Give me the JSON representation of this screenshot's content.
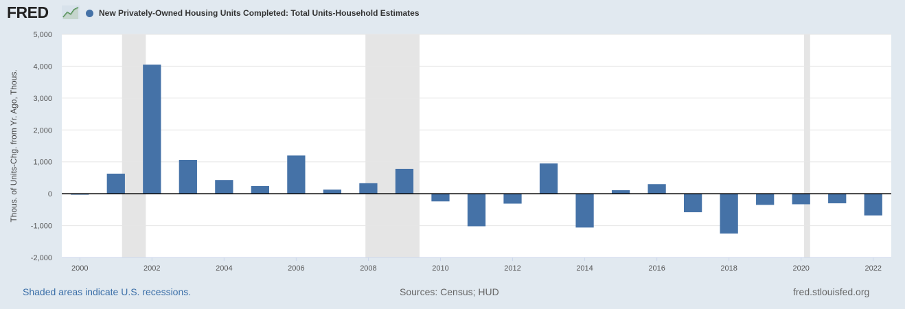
{
  "header": {
    "logo_text": "FRED",
    "logo_icon": "line-graph-icon",
    "legend_label": "New Privately-Owned Housing Units Completed: Total Units-Household Estimates"
  },
  "footer": {
    "recessions_note": "Shaded areas indicate U.S. recessions.",
    "sources": "Sources: Census; HUD",
    "site": "fred.stlouisfed.org"
  },
  "colors": {
    "bar": "#4572a7",
    "recession": "#e5e5e5",
    "background": "#e1e9f0"
  },
  "chart_data": {
    "type": "bar",
    "title": "New Privately-Owned Housing Units Completed: Total Units-Household Estimates",
    "ylabel": "Thous. of Units-Chg. from Yr. Ago, Thous.",
    "xlabel": "",
    "ylim": [
      -2000,
      5000
    ],
    "yticks": [
      -2000,
      -1000,
      0,
      1000,
      2000,
      3000,
      4000,
      5000
    ],
    "ytick_labels": [
      "-2,000",
      "-1,000",
      "0",
      "1,000",
      "2,000",
      "3,000",
      "4,000",
      "5,000"
    ],
    "xticks": [
      2000,
      2002,
      2004,
      2006,
      2008,
      2010,
      2012,
      2014,
      2016,
      2018,
      2020,
      2022
    ],
    "xlim": [
      1999.5,
      2022.5
    ],
    "grid": true,
    "categories": [
      2000,
      2001,
      2002,
      2003,
      2004,
      2005,
      2006,
      2007,
      2008,
      2009,
      2010,
      2011,
      2012,
      2013,
      2014,
      2015,
      2016,
      2017,
      2018,
      2019,
      2020,
      2021,
      2022
    ],
    "values": [
      -30,
      630,
      4050,
      1060,
      430,
      240,
      1200,
      130,
      330,
      780,
      -240,
      -1020,
      -310,
      950,
      -1060,
      110,
      300,
      -580,
      -1250,
      -350,
      -330,
      -300,
      -680
    ],
    "recessions": [
      [
        2001.17,
        2001.83
      ],
      [
        2007.92,
        2009.42
      ],
      [
        2020.08,
        2020.25
      ]
    ]
  }
}
